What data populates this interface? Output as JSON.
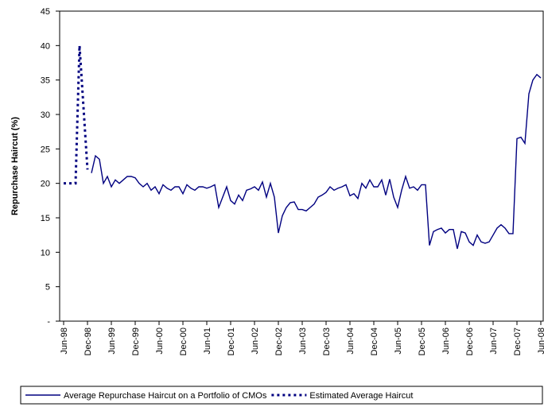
{
  "chart_data": {
    "type": "line",
    "ylabel": "Repurchase Haircut (%)",
    "categories": [
      "Jun-98",
      null,
      null,
      null,
      null,
      null,
      "Dec-98",
      null,
      null,
      null,
      null,
      null,
      "Jun-99",
      null,
      null,
      null,
      null,
      null,
      "Dec-99",
      null,
      null,
      null,
      null,
      null,
      "Jun-00",
      null,
      null,
      null,
      null,
      null,
      "Dec-00",
      null,
      null,
      null,
      null,
      null,
      "Jun-01",
      null,
      null,
      null,
      null,
      null,
      "Dec-01",
      null,
      null,
      null,
      null,
      null,
      "Jun-02",
      null,
      null,
      null,
      null,
      null,
      "Dec-02",
      null,
      null,
      null,
      null,
      null,
      "Jun-03",
      null,
      null,
      null,
      null,
      null,
      "Dec-03",
      null,
      null,
      null,
      null,
      null,
      "Jun-04",
      null,
      null,
      null,
      null,
      null,
      "Dec-04",
      null,
      null,
      null,
      null,
      null,
      "Jun-05",
      null,
      null,
      null,
      null,
      null,
      "Dec-05",
      null,
      null,
      null,
      null,
      null,
      "Jun-06",
      null,
      null,
      null,
      null,
      null,
      "Dec-06",
      null,
      null,
      null,
      null,
      null,
      "Jun-07",
      null,
      null,
      null,
      null,
      null,
      "Dec-07",
      null,
      null,
      null,
      null,
      null,
      "Jun-08"
    ],
    "series": [
      {
        "name": "Average Repurchase Haircut on a Portfolio of CMOs",
        "color": "#000080",
        "line_style": "solid",
        "values": [
          null,
          null,
          null,
          null,
          null,
          null,
          null,
          21.5,
          24,
          23.5,
          20,
          21,
          19.5,
          20.5,
          20,
          20.5,
          21,
          21,
          20.8,
          20,
          19.5,
          20,
          19,
          19.5,
          18.5,
          19.8,
          19.3,
          19,
          19.5,
          19.5,
          18.5,
          19.8,
          19.3,
          19,
          19.5,
          19.5,
          19.3,
          19.5,
          19.8,
          16.5,
          18,
          19.5,
          17.5,
          17,
          18.3,
          17.5,
          19,
          19.2,
          19.5,
          19,
          20.2,
          18,
          20,
          18,
          12.8,
          15.3,
          16.5,
          17.2,
          17.3,
          16.2,
          16.2,
          16,
          16.5,
          17,
          18,
          18.3,
          18.7,
          19.5,
          19,
          19.3,
          19.5,
          19.8,
          18.2,
          18.5,
          17.8,
          20,
          19.3,
          20.5,
          19.5,
          19.5,
          20.5,
          18.3,
          20.6,
          18,
          16.5,
          19,
          21,
          19.3,
          19.5,
          19,
          19.8,
          19.8,
          11,
          13,
          13.3,
          13.5,
          12.8,
          13.3,
          13.3,
          10.5,
          13,
          12.8,
          11.5,
          11,
          12.5,
          11.5,
          11.3,
          11.5,
          12.5,
          13.5,
          14,
          13.5,
          12.7,
          12.7,
          26.5,
          26.7,
          25.8,
          33,
          35,
          35.8,
          35.3
        ]
      },
      {
        "name": "Estimated Average Haircut",
        "color": "#000080",
        "line_style": "dotted",
        "values": [
          20,
          20,
          20,
          20,
          40,
          31,
          22,
          null,
          null,
          null,
          null,
          null,
          null,
          null,
          null,
          null,
          null,
          null,
          null,
          null,
          null,
          null,
          null,
          null,
          null,
          null,
          null,
          null,
          null,
          null,
          null,
          null,
          null,
          null,
          null,
          null,
          null,
          null,
          null,
          null,
          null,
          null,
          null,
          null,
          null,
          null,
          null,
          null,
          null,
          null,
          null,
          null,
          null,
          null,
          null,
          null,
          null,
          null,
          null,
          null,
          null,
          null,
          null,
          null,
          null,
          null,
          null,
          null,
          null,
          null,
          null,
          null,
          null,
          null,
          null,
          null,
          null,
          null,
          null,
          null,
          null,
          null,
          null,
          null,
          null,
          null,
          null,
          null,
          null,
          null,
          null,
          null,
          null,
          null,
          null,
          null,
          null,
          null,
          null,
          null,
          null,
          null,
          null,
          null,
          null,
          null,
          null,
          null,
          null,
          null,
          null,
          null,
          null,
          null,
          null,
          null,
          null,
          null,
          null,
          null,
          null
        ]
      }
    ],
    "ylim": [
      0,
      45
    ],
    "yticks": [
      {
        "value": 0,
        "label": "-"
      },
      5,
      10,
      15,
      20,
      25,
      30,
      35,
      40,
      45
    ],
    "grid": false,
    "legend": "bottom"
  }
}
